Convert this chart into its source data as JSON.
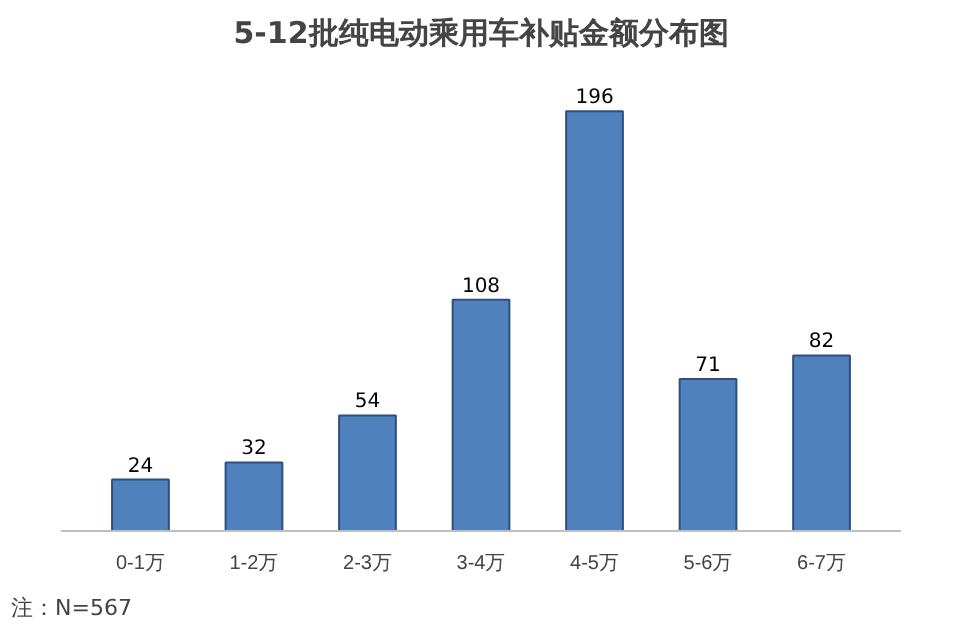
{
  "chart_data": {
    "type": "bar",
    "title": "5-12批纯电动乘用车补贴金额分布图",
    "categories": [
      "0-1万",
      "1-2万",
      "2-3万",
      "3-4万",
      "4-5万",
      "5-6万",
      "6-7万"
    ],
    "values": [
      24,
      32,
      54,
      108,
      196,
      71,
      82
    ],
    "color": "#4f81bd",
    "data_labels": true,
    "grid": false,
    "annotations": [
      "注：N=567"
    ]
  }
}
